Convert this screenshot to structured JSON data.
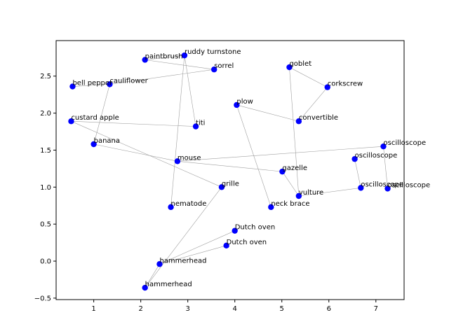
{
  "chart_data": {
    "type": "scatter",
    "title": "",
    "xlabel": "",
    "ylabel": "",
    "xlim": [
      0.2,
      7.6
    ],
    "ylim": [
      -0.52,
      2.98
    ],
    "x_ticks": [
      1,
      2,
      3,
      4,
      5,
      6,
      7
    ],
    "y_ticks": [
      -0.5,
      0.0,
      0.5,
      1.0,
      1.5,
      2.0,
      2.5
    ],
    "x_tick_labels": [
      "1",
      "2",
      "3",
      "4",
      "5",
      "6",
      "7"
    ],
    "y_tick_labels": [
      "−0.5",
      "0.0",
      "0.5",
      "1.0",
      "1.5",
      "2.0",
      "2.5"
    ],
    "grid": false,
    "marker_color": "#0000ff",
    "edge_color": "#a0a0a0",
    "points": [
      {
        "label": "ruddy turnstone",
        "x": 2.93,
        "y": 2.78
      },
      {
        "label": "paintbrush",
        "x": 2.09,
        "y": 2.72
      },
      {
        "label": "goblet",
        "x": 5.16,
        "y": 2.62
      },
      {
        "label": "sorrel",
        "x": 3.56,
        "y": 2.59
      },
      {
        "label": "cauliflower",
        "x": 1.34,
        "y": 2.39
      },
      {
        "label": "bell pepper",
        "x": 0.55,
        "y": 2.36
      },
      {
        "label": "corkscrew",
        "x": 5.97,
        "y": 2.35
      },
      {
        "label": "plow",
        "x": 4.04,
        "y": 2.11
      },
      {
        "label": "custard apple",
        "x": 0.52,
        "y": 1.89
      },
      {
        "label": "convertible",
        "x": 5.36,
        "y": 1.89
      },
      {
        "label": "titi",
        "x": 3.17,
        "y": 1.82
      },
      {
        "label": "banana",
        "x": 1.0,
        "y": 1.58
      },
      {
        "label": "oscilloscope",
        "x": 7.16,
        "y": 1.55
      },
      {
        "label": "oscilloscope",
        "x": 6.55,
        "y": 1.38
      },
      {
        "label": "mouse",
        "x": 2.78,
        "y": 1.35
      },
      {
        "label": "gazelle",
        "x": 5.01,
        "y": 1.21
      },
      {
        "label": "grille",
        "x": 3.72,
        "y": 1.0
      },
      {
        "label": "oscilloscope",
        "x": 6.68,
        "y": 0.99
      },
      {
        "label": "oscilloscope",
        "x": 7.25,
        "y": 0.98
      },
      {
        "label": "vulture",
        "x": 5.36,
        "y": 0.88
      },
      {
        "label": "nematode",
        "x": 2.64,
        "y": 0.73
      },
      {
        "label": "neck brace",
        "x": 4.77,
        "y": 0.73
      },
      {
        "label": "Dutch oven",
        "x": 4.0,
        "y": 0.41
      },
      {
        "label": "Dutch oven",
        "x": 3.82,
        "y": 0.21
      },
      {
        "label": "hammerhead",
        "x": 2.4,
        "y": -0.04
      },
      {
        "label": "hammerhead",
        "x": 2.09,
        "y": -0.36
      }
    ],
    "edges": [
      [
        0,
        1
      ],
      [
        0,
        10
      ],
      [
        0,
        20
      ],
      [
        1,
        3
      ],
      [
        3,
        4
      ],
      [
        4,
        5
      ],
      [
        4,
        11
      ],
      [
        2,
        6
      ],
      [
        2,
        19
      ],
      [
        6,
        9
      ],
      [
        9,
        7
      ],
      [
        7,
        21
      ],
      [
        8,
        10
      ],
      [
        8,
        16
      ],
      [
        11,
        14
      ],
      [
        14,
        15
      ],
      [
        14,
        12
      ],
      [
        12,
        18
      ],
      [
        13,
        17
      ],
      [
        15,
        19
      ],
      [
        19,
        17
      ],
      [
        16,
        25
      ],
      [
        25,
        24
      ],
      [
        24,
        22
      ],
      [
        24,
        23
      ]
    ]
  }
}
